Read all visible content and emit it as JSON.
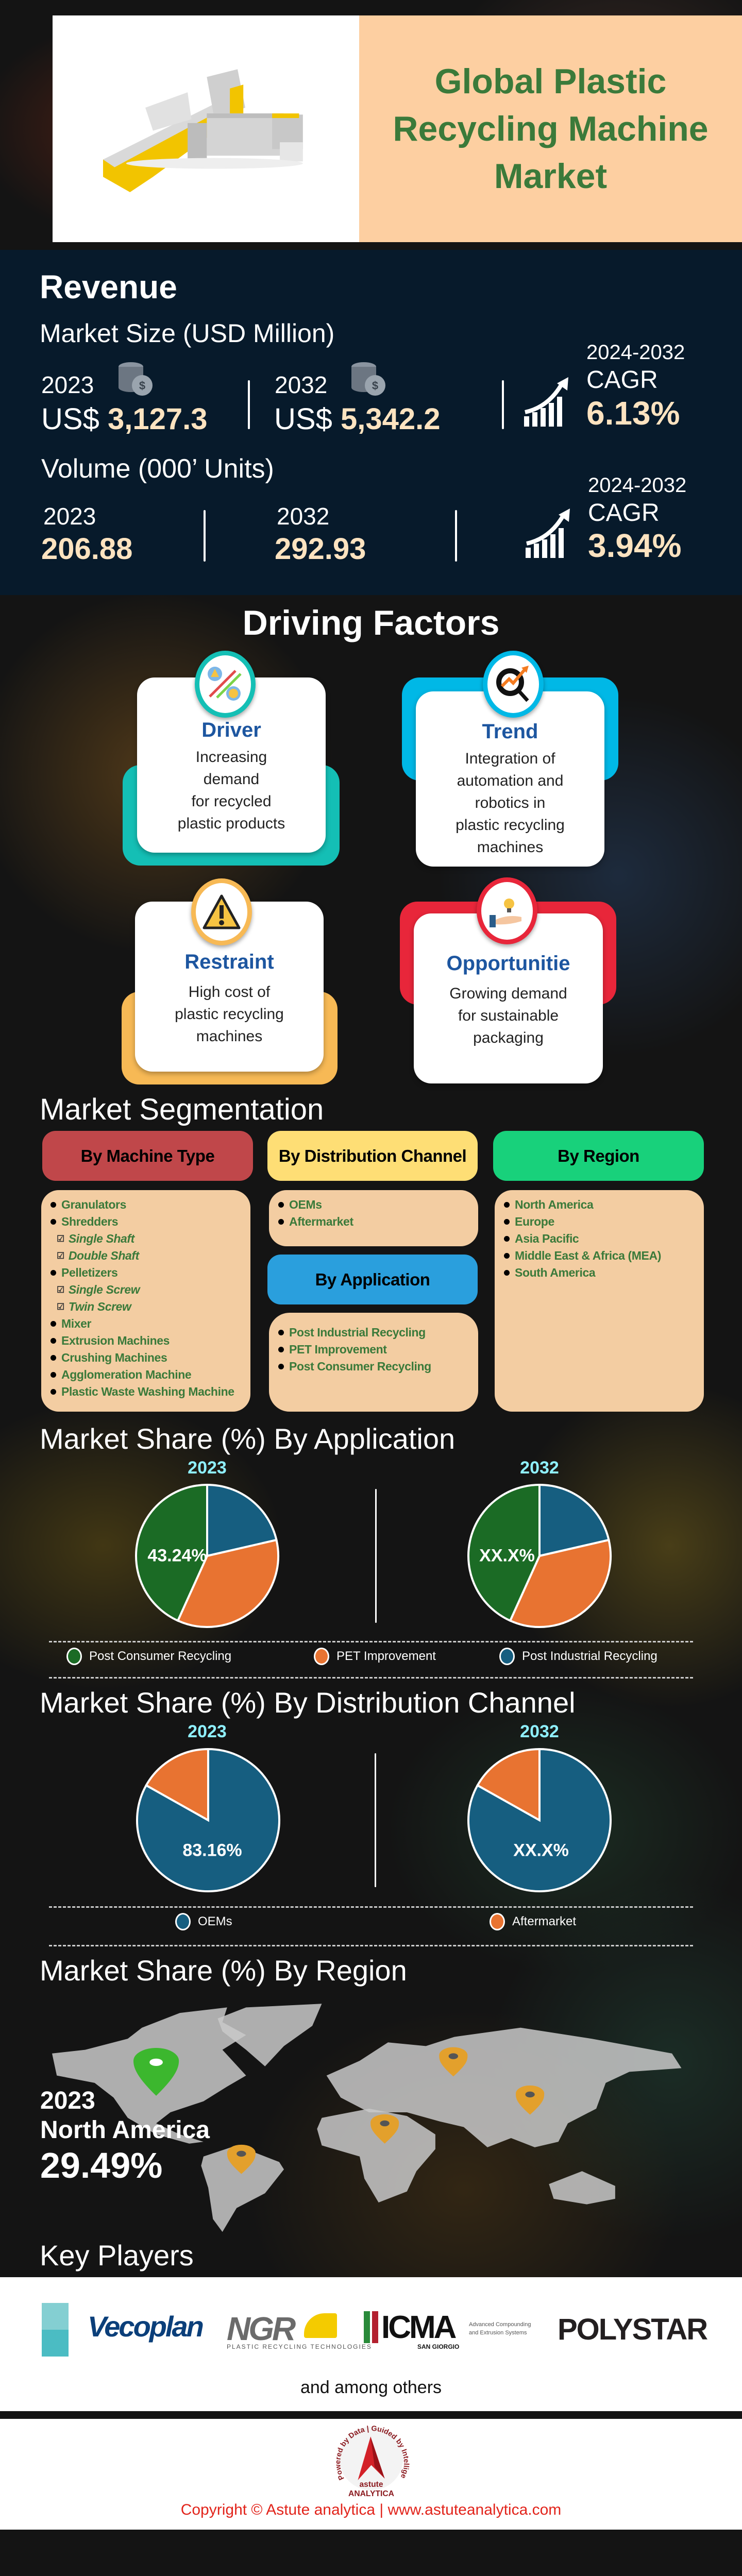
{
  "hero": {
    "title_lines": [
      "Global Plastic",
      "Recycling Machine",
      "Market"
    ],
    "image": "plastic-recycling-machine"
  },
  "revenue": {
    "title": "Revenue",
    "market_size_label": "Market Size (USD Million)",
    "year_a": "2023",
    "value_a_prefix": "US$",
    "value_a": "3,127.3",
    "year_b": "2032",
    "value_b_prefix": "US$",
    "value_b": "5,342.2",
    "cagr_period": "2024-2032",
    "cagr_label": "CAGR",
    "cagr_value": "6.13%",
    "volume_label": "Volume (000’ Units)",
    "vol_year_a": "2023",
    "vol_value_a": "206.88",
    "vol_year_b": "2032",
    "vol_value_b": "292.93",
    "vol_cagr_period": "2024-2032",
    "vol_cagr_label": "CAGR",
    "vol_cagr_value": "3.94%"
  },
  "driving_factors": {
    "title": "Driving Factors",
    "cards": [
      {
        "title": "Driver",
        "lines": [
          "Increasing",
          "demand",
          "for recycled",
          "plastic products"
        ],
        "color": "#14bfb5",
        "icon": "market-dynamics-icon"
      },
      {
        "title": "Trend",
        "lines": [
          "Integration of",
          "automation and",
          "robotics in",
          "plastic recycling",
          "machines"
        ],
        "color": "#00b8e6",
        "icon": "trend-search-icon"
      },
      {
        "title": "Restraint",
        "lines": [
          "High cost of",
          "plastic recycling",
          "machines"
        ],
        "color": "#f7b955",
        "icon": "warning-icon"
      },
      {
        "title": "Opportunitie",
        "lines": [
          "Growing demand",
          "for sustainable",
          "packaging"
        ],
        "color": "#e8263a",
        "icon": "idea-hand-icon"
      }
    ]
  },
  "segmentation": {
    "title": "Market Segmentation",
    "machine_type": {
      "header": "By  Machine Type",
      "color": "#c0474a",
      "items": [
        {
          "label": "Granulators",
          "sub": false
        },
        {
          "label": "Shredders",
          "sub": false
        },
        {
          "label": "Single Shaft",
          "sub": true
        },
        {
          "label": "Double Shaft",
          "sub": true
        },
        {
          "label": "Pelletizers",
          "sub": false
        },
        {
          "label": "Single Screw",
          "sub": true
        },
        {
          "label": "Twin Screw",
          "sub": true
        },
        {
          "label": "Mixer",
          "sub": false
        },
        {
          "label": "Extrusion Machines",
          "sub": false
        },
        {
          "label": "Crushing Machines",
          "sub": false
        },
        {
          "label": "Agglomeration Machine",
          "sub": false
        },
        {
          "label": "Plastic Waste Washing Machine",
          "sub": false
        }
      ]
    },
    "distribution": {
      "header": "By Distribution Channel",
      "color": "#fede75",
      "items": [
        "OEMs",
        "Aftermarket"
      ]
    },
    "application": {
      "header": "By Application",
      "color": "#2a9fdd",
      "items": [
        "Post Industrial Recycling",
        "PET Improvement",
        "Post Consumer Recycling"
      ]
    },
    "region": {
      "header": "By Region",
      "color": "#18d17b",
      "items": [
        "North America",
        "Europe",
        "Asia Pacific",
        "Middle East & Africa (MEA)",
        "South America"
      ]
    }
  },
  "chart_data": [
    {
      "type": "pie",
      "title": "Market Share (%) By Application",
      "year": "2023",
      "slices": [
        {
          "name": "Post Industrial Recycling",
          "value": 21.4,
          "color": "#165e80"
        },
        {
          "name": "PET Improvement",
          "value": 35.36,
          "color": "#e87331"
        },
        {
          "name": "Post Consumer Recycling",
          "value": 43.24,
          "color": "#1b6b25"
        }
      ],
      "label": "43.24%"
    },
    {
      "type": "pie",
      "title": "Market Share (%) By Application",
      "year": "2032",
      "slices": [
        {
          "name": "Post Industrial Recycling",
          "value": 21.4,
          "color": "#165e80"
        },
        {
          "name": "PET Improvement",
          "value": 35.36,
          "color": "#e87331"
        },
        {
          "name": "Post Consumer Recycling",
          "value": 43.24,
          "color": "#1b6b25"
        }
      ],
      "label": "XX.X%"
    },
    {
      "type": "pie",
      "title": "Market Share (%) By Distribution Channel",
      "year": "2023",
      "slices": [
        {
          "name": "OEMs",
          "value": 83.16,
          "color": "#165e80"
        },
        {
          "name": "Aftermarket",
          "value": 16.84,
          "color": "#e87331"
        }
      ],
      "label": "83.16%"
    },
    {
      "type": "pie",
      "title": "Market Share (%) By Distribution Channel",
      "year": "2032",
      "slices": [
        {
          "name": "OEMs",
          "value": 83.16,
          "color": "#165e80"
        },
        {
          "name": "Aftermarket",
          "value": 16.84,
          "color": "#e87331"
        }
      ],
      "label": "XX.X%"
    }
  ],
  "app_share": {
    "title": "Market Share (%) By Application",
    "year_a": "2023",
    "year_b": "2032",
    "legend": [
      {
        "name": "Post Consumer Recycling",
        "color": "#1b6b25"
      },
      {
        "name": "PET Improvement",
        "color": "#e87331"
      },
      {
        "name": "Post Industrial Recycling",
        "color": "#165e80"
      }
    ]
  },
  "dist_share": {
    "title": "Market Share (%) By Distribution Channel",
    "year_a": "2023",
    "year_b": "2032",
    "legend": [
      {
        "name": "OEMs",
        "color": "#165e80"
      },
      {
        "name": "Aftermarket",
        "color": "#e87331"
      }
    ]
  },
  "region_share": {
    "title": "Market Share (%) By Region",
    "year": "2023",
    "region": "North America",
    "value": "29.49%",
    "highlight_color": "#3cb72e",
    "pin_color": "#e3a02c"
  },
  "key_players": {
    "title": "Key Players",
    "logos": [
      "Vecoplan",
      "NGR",
      "ICMA",
      "POLYSTAR"
    ],
    "ngr_tagline": "PLASTIC RECYCLING TECHNOLOGIES",
    "icma_sub": "SAN GIORGIO",
    "icma_tagline": [
      "Advanced Compounding",
      "and Extrusion Systems"
    ],
    "others": "and among others"
  },
  "footer": {
    "logo_text": [
      "astute",
      "ANALYTICA"
    ],
    "logo_ring": "Powered by Data | Guided by Intelligence",
    "copyright": "Copyright © Astute analytica | www.astuteanalytica.com"
  }
}
